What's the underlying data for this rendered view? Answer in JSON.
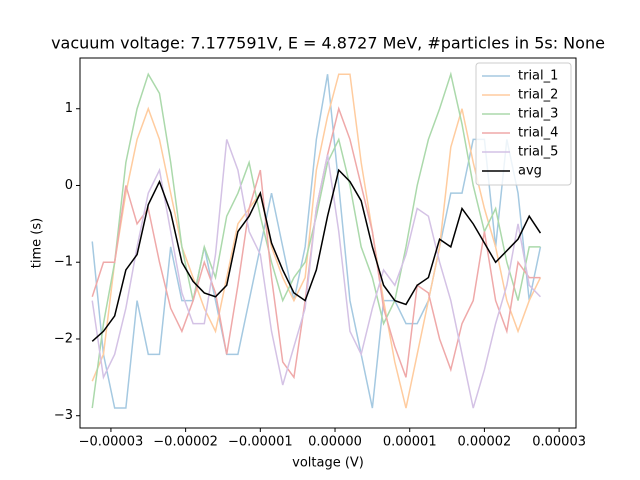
{
  "chart_data": {
    "type": "line",
    "title": "vacuum voltage: 7.177591V, E = 4.8727 MeV, #particles in 5s: None",
    "xlabel": "voltage (V)",
    "ylabel": "time (s)",
    "x": [
      -3.25e-05,
      -3.1e-05,
      -2.95e-05,
      -2.8e-05,
      -2.65e-05,
      -2.5e-05,
      -2.35e-05,
      -2.2e-05,
      -2.05e-05,
      -1.9e-05,
      -1.75e-05,
      -1.6e-05,
      -1.45e-05,
      -1.3e-05,
      -1.15e-05,
      -1e-05,
      -8.5e-06,
      -7e-06,
      -5.5e-06,
      -4e-06,
      -2.5e-06,
      -1e-06,
      5e-07,
      2e-06,
      3.5e-06,
      5e-06,
      6.5e-06,
      8e-06,
      9.5e-06,
      1.1e-05,
      1.25e-05,
      1.4e-05,
      1.55e-05,
      1.7e-05,
      1.85e-05,
      2e-05,
      2.15e-05,
      2.3e-05,
      2.45e-05,
      2.6e-05,
      2.75e-05
    ],
    "series": [
      {
        "name": "trial_1",
        "color": "#a5c9e1",
        "values": [
          -0.73,
          -2.2,
          -2.9,
          -2.9,
          -1.5,
          -2.2,
          -2.2,
          -0.8,
          -1.5,
          -1.5,
          -0.8,
          -1.5,
          -2.2,
          -2.2,
          -1.5,
          -0.8,
          -0.1,
          -0.8,
          -1.5,
          -0.8,
          0.6,
          1.45,
          0.0,
          -1.5,
          -2.2,
          -2.9,
          -1.5,
          -1.5,
          -1.8,
          -1.8,
          -1.5,
          -0.8,
          -0.1,
          -0.1,
          0.6,
          0.6,
          -0.8,
          0.6,
          -0.1,
          -1.5,
          -0.8
        ]
      },
      {
        "name": "trial_2",
        "color": "#ffcc9f",
        "values": [
          -2.55,
          -2.2,
          -1.0,
          -0.1,
          0.6,
          1.0,
          0.6,
          -0.1,
          -0.8,
          -1.2,
          -1.6,
          -1.9,
          -1.2,
          -0.5,
          -0.3,
          -0.1,
          -0.8,
          -1.2,
          -1.5,
          -1.2,
          0.2,
          0.9,
          1.45,
          1.45,
          0.3,
          -0.6,
          -1.5,
          -2.3,
          -2.9,
          -2.2,
          -1.5,
          -0.8,
          0.5,
          1.0,
          0.3,
          -0.3,
          -0.8,
          -1.5,
          -1.9,
          -1.5,
          -1.2
        ]
      },
      {
        "name": "trial_3",
        "color": "#abd9ab",
        "values": [
          -2.9,
          -1.8,
          -1.0,
          0.3,
          1.0,
          1.45,
          1.2,
          0.3,
          -0.8,
          -1.5,
          -0.8,
          -1.2,
          -0.4,
          -0.1,
          0.3,
          -0.4,
          -1.0,
          -1.5,
          -1.2,
          -1.0,
          -0.4,
          0.3,
          0.6,
          0.0,
          -0.8,
          -1.2,
          -1.8,
          -1.5,
          -0.8,
          0.0,
          0.6,
          1.0,
          1.45,
          0.8,
          0.0,
          -0.6,
          -0.3,
          -1.0,
          -1.5,
          -0.8,
          -0.8
        ]
      },
      {
        "name": "trial_4",
        "color": "#efa9a9",
        "values": [
          -1.45,
          -1.0,
          -1.0,
          0.0,
          -0.5,
          -0.3,
          -1.0,
          -1.6,
          -1.9,
          -1.5,
          -1.0,
          -1.4,
          -2.2,
          -1.3,
          -0.3,
          0.2,
          -1.2,
          -2.3,
          -2.5,
          -1.5,
          -0.3,
          0.4,
          1.0,
          0.6,
          0.0,
          -0.6,
          -1.6,
          -2.1,
          -2.5,
          -1.3,
          -1.4,
          -2.0,
          -2.4,
          -1.8,
          -1.5,
          -0.6,
          -1.5,
          -1.9,
          -1.0,
          -1.2,
          -1.2
        ]
      },
      {
        "name": "trial_5",
        "color": "#d4c2e5",
        "values": [
          -1.5,
          -2.5,
          -2.2,
          -1.6,
          -0.8,
          -0.1,
          0.2,
          -0.6,
          -1.4,
          -1.8,
          -1.8,
          -0.9,
          0.6,
          0.2,
          -0.6,
          -0.9,
          -1.9,
          -2.6,
          -2.1,
          -1.6,
          -0.3,
          0.4,
          -0.6,
          -1.9,
          -2.2,
          -1.6,
          -1.1,
          -1.3,
          -0.9,
          -0.3,
          -0.4,
          -1.0,
          -1.5,
          -2.2,
          -2.9,
          -2.4,
          -1.8,
          -1.3,
          -0.5,
          -1.3,
          -1.45
        ]
      },
      {
        "name": "avg",
        "color": "#000000",
        "values": [
          -2.03,
          -1.9,
          -1.7,
          -1.1,
          -0.9,
          -0.25,
          0.05,
          -0.35,
          -1.0,
          -1.25,
          -1.4,
          -1.45,
          -1.3,
          -0.6,
          -0.4,
          -0.1,
          -0.75,
          -1.1,
          -1.4,
          -1.5,
          -1.1,
          -0.4,
          0.2,
          0.05,
          -0.2,
          -0.8,
          -1.3,
          -1.5,
          -1.55,
          -1.3,
          -1.2,
          -0.7,
          -0.8,
          -0.3,
          -0.5,
          -0.75,
          -1.0,
          -0.85,
          -0.7,
          -0.4,
          -0.62
        ]
      }
    ],
    "xlim": [
      -3.414e-05,
      3.226e-05
    ],
    "ylim": [
      -3.16,
      1.661
    ],
    "xticks": [
      {
        "value": -3e-05,
        "label": "−0.00003"
      },
      {
        "value": -2e-05,
        "label": "−0.00002"
      },
      {
        "value": -1e-05,
        "label": "−0.00001"
      },
      {
        "value": 0,
        "label": "0.00000"
      },
      {
        "value": 1e-05,
        "label": "0.00001"
      },
      {
        "value": 2e-05,
        "label": "0.00002"
      },
      {
        "value": 3e-05,
        "label": "0.00003"
      }
    ],
    "yticks": [
      {
        "value": -3,
        "label": "−3"
      },
      {
        "value": -2,
        "label": "−2"
      },
      {
        "value": -1,
        "label": "−1"
      },
      0,
      1
    ],
    "legend": "upper right"
  }
}
